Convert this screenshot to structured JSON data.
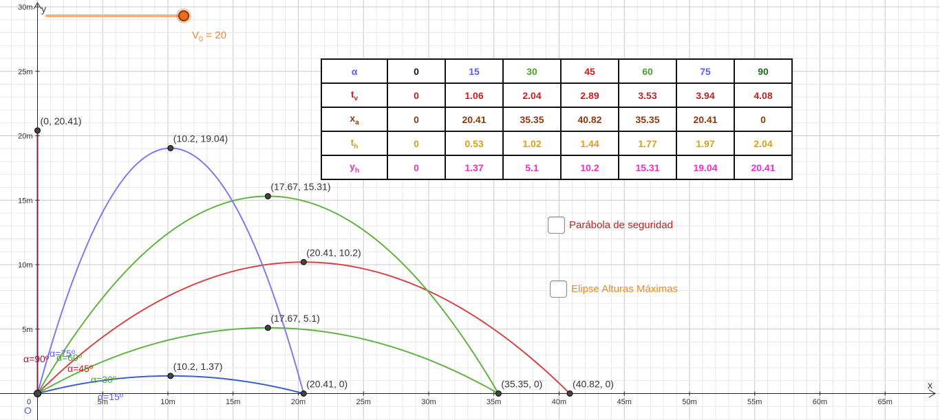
{
  "slider": {
    "label_base": "V",
    "label_sub": "0",
    "label_rest": " = 20",
    "value": 20,
    "min": 0,
    "max": 20,
    "color": "#f26b17"
  },
  "table": {
    "rows": [
      {
        "key": "alpha",
        "label": "α",
        "sub": "",
        "label_color": "#5a5aff",
        "cells": [
          {
            "v": "0",
            "c": "#111111"
          },
          {
            "v": "15",
            "c": "#5a5aff"
          },
          {
            "v": "30",
            "c": "#49a12f"
          },
          {
            "v": "45",
            "c": "#c81e1e"
          },
          {
            "v": "60",
            "c": "#49a12f"
          },
          {
            "v": "75",
            "c": "#5a5aff"
          },
          {
            "v": "90",
            "c": "#1f6a1f"
          }
        ]
      },
      {
        "key": "tv",
        "label": "t",
        "sub": "v",
        "label_color": "#c81e1e",
        "cells": [
          {
            "v": "0",
            "c": "#c81e1e"
          },
          {
            "v": "1.06",
            "c": "#c81e1e"
          },
          {
            "v": "2.04",
            "c": "#c81e1e"
          },
          {
            "v": "2.89",
            "c": "#c81e1e"
          },
          {
            "v": "3.53",
            "c": "#c81e1e"
          },
          {
            "v": "3.94",
            "c": "#c81e1e"
          },
          {
            "v": "4.08",
            "c": "#c81e1e"
          }
        ]
      },
      {
        "key": "xa",
        "label": "x",
        "sub": "a",
        "label_color": "#8b3a0e",
        "cells": [
          {
            "v": "0",
            "c": "#8b3a0e"
          },
          {
            "v": "20.41",
            "c": "#8b3a0e"
          },
          {
            "v": "35.35",
            "c": "#8b3a0e"
          },
          {
            "v": "40.82",
            "c": "#8b3a0e"
          },
          {
            "v": "35.35",
            "c": "#8b3a0e"
          },
          {
            "v": "20.41",
            "c": "#8b3a0e"
          },
          {
            "v": "0",
            "c": "#8b3a0e"
          }
        ]
      },
      {
        "key": "th",
        "label": "t",
        "sub": "h",
        "label_color": "#d6a018",
        "cells": [
          {
            "v": "0",
            "c": "#d6a018"
          },
          {
            "v": "0.53",
            "c": "#d6a018"
          },
          {
            "v": "1.02",
            "c": "#d6a018"
          },
          {
            "v": "1.44",
            "c": "#d6a018"
          },
          {
            "v": "1.77",
            "c": "#d6a018"
          },
          {
            "v": "1.97",
            "c": "#d6a018"
          },
          {
            "v": "2.04",
            "c": "#d6a018"
          }
        ]
      },
      {
        "key": "yh",
        "label": "y",
        "sub": "h",
        "label_color": "#e633c6",
        "cells": [
          {
            "v": "0",
            "c": "#e633c6"
          },
          {
            "v": "1.37",
            "c": "#e633c6"
          },
          {
            "v": "5.1",
            "c": "#e633c6"
          },
          {
            "v": "10.2",
            "c": "#e633c6"
          },
          {
            "v": "15.31",
            "c": "#e633c6"
          },
          {
            "v": "19.04",
            "c": "#e633c6"
          },
          {
            "v": "20.41",
            "c": "#e633c6"
          }
        ]
      }
    ]
  },
  "checkboxes": {
    "parabola": {
      "label": "Parábola de seguridad",
      "checked": false,
      "color": "#c81e1e"
    },
    "elipse": {
      "label": "Elipse Alturas Máximas",
      "checked": false,
      "color": "#f08a24"
    }
  },
  "graph": {
    "x_axis_name": "x",
    "y_axis_name": "y",
    "origin_label": "0",
    "origin_point_label": "O",
    "x_ticks": [
      {
        "v": 5,
        "label": "5m"
      },
      {
        "v": 10,
        "label": "10m"
      },
      {
        "v": 15,
        "label": "15m"
      },
      {
        "v": 20,
        "label": "20m"
      },
      {
        "v": 25,
        "label": "25m"
      },
      {
        "v": 30,
        "label": "30m"
      },
      {
        "v": 35,
        "label": "35m"
      },
      {
        "v": 40,
        "label": "40m"
      },
      {
        "v": 45,
        "label": "45m"
      },
      {
        "v": 50,
        "label": "50m"
      },
      {
        "v": 55,
        "label": "55m"
      },
      {
        "v": 60,
        "label": "60m"
      },
      {
        "v": 65,
        "label": "65m"
      }
    ],
    "y_ticks": [
      {
        "v": 5,
        "label": "5m"
      },
      {
        "v": 10,
        "label": "10m"
      },
      {
        "v": 15,
        "label": "15m"
      },
      {
        "v": 20,
        "label": "20m"
      },
      {
        "v": 25,
        "label": "25m"
      },
      {
        "v": 30,
        "label": "30m"
      }
    ],
    "trajectories": [
      {
        "angle": 15,
        "range": 20.41,
        "hmax": 1.37,
        "color": "#3a5fcd"
      },
      {
        "angle": 30,
        "range": 35.35,
        "hmax": 5.1,
        "color": "#5fb340"
      },
      {
        "angle": 45,
        "range": 40.82,
        "hmax": 10.2,
        "color": "#d44444"
      },
      {
        "angle": 60,
        "range": 35.35,
        "hmax": 15.31,
        "color": "#5fb340"
      },
      {
        "angle": 75,
        "range": 20.41,
        "hmax": 19.04,
        "color": "#7b7bf0"
      },
      {
        "angle": 90,
        "range": 0,
        "hmax": 20.41,
        "color": "#8b1a3a"
      }
    ],
    "points": [
      {
        "x": 0,
        "y": 20.41,
        "label": "(0, 20.41)"
      },
      {
        "x": 10.2,
        "y": 19.04,
        "label": "(10.2, 19.04)"
      },
      {
        "x": 17.67,
        "y": 15.31,
        "label": "(17.67, 15.31)"
      },
      {
        "x": 20.41,
        "y": 10.2,
        "label": "(20.41, 10.2)"
      },
      {
        "x": 17.67,
        "y": 5.1,
        "label": "(17.67, 5.1)"
      },
      {
        "x": 10.2,
        "y": 1.37,
        "label": "(10.2, 1.37)"
      },
      {
        "x": 20.41,
        "y": 0,
        "label": "(20.41, 0)"
      },
      {
        "x": 35.35,
        "y": 0,
        "label": "(35.35, 0)"
      },
      {
        "x": 40.82,
        "y": 0,
        "label": "(40.82, 0)"
      }
    ],
    "angle_labels": [
      {
        "text": "α=90º",
        "color": "#8b1a3a"
      },
      {
        "text": "α=60º",
        "color": "#49a12f"
      },
      {
        "text": "α=45º",
        "color": "#c81e1e"
      },
      {
        "text": "α=30º",
        "color": "#49a12f"
      },
      {
        "text": "α=15º",
        "color": "#5a5aff"
      },
      {
        "text": "α=75º",
        "color": "#5a5aff"
      }
    ]
  }
}
